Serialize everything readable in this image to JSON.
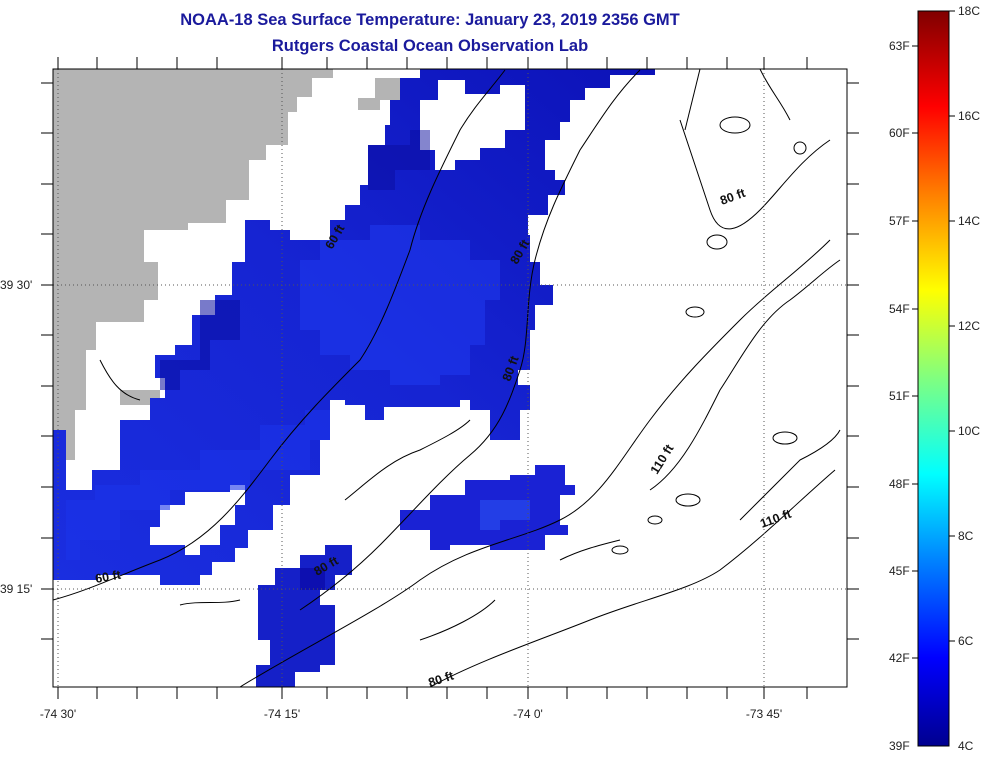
{
  "title": "NOAA-18 Sea Surface Temperature:  January 23, 2019 2356 GMT",
  "subtitle": "Rutgers Coastal Ocean Observation Lab",
  "map": {
    "lat_labels": [
      "39 30'",
      "39 15'"
    ],
    "lon_labels": [
      "-74 30'",
      "-74 15'",
      "-74 0'",
      "-73 45'"
    ],
    "contour_labels": [
      "60 ft",
      "80 ft",
      "80 ft",
      "80 ft",
      "110 ft",
      "110 ft",
      "60 ft",
      "80 ft",
      "80 ft"
    ],
    "land_color": "#b4b4b4",
    "no_data_color": "#ffffff"
  },
  "colorbar": {
    "fahrenheit_labels": [
      "63F",
      "60F",
      "57F",
      "54F",
      "51F",
      "48F",
      "45F",
      "42F",
      "39F"
    ],
    "celsius_labels": [
      "18C",
      "16C",
      "14C",
      "12C",
      "10C",
      "8C",
      "6C",
      "4C"
    ],
    "colors_bottom_to_top": [
      "#00008f",
      "#0000ff",
      "#0080ff",
      "#00ffff",
      "#80ff80",
      "#ffff00",
      "#ff8000",
      "#ff0000",
      "#800000"
    ]
  }
}
